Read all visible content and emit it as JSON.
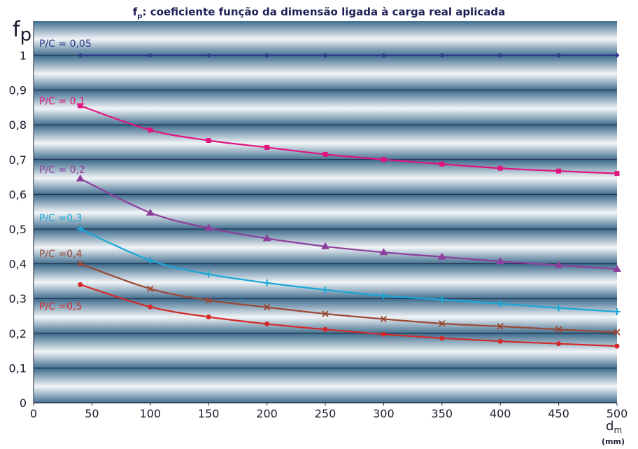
{
  "chart_data": {
    "type": "line",
    "title_main": "f",
    "title_sub": "p",
    "title_rest": ": coeficiente função da dimensão ligada à carga real aplicada",
    "ylabel_main": "f",
    "ylabel_sub": "p",
    "xlabel_main": "d",
    "xlabel_sub": "m",
    "xlabel_unit": "(mm)",
    "xlim": [
      0,
      500
    ],
    "ylim": [
      0,
      1.1
    ],
    "x_ticks": [
      "0",
      "50",
      "100",
      "150",
      "200",
      "250",
      "300",
      "350",
      "400",
      "450",
      "500"
    ],
    "y_ticks": [
      "0",
      "0,1",
      "0,2",
      "0,3",
      "0,4",
      "0,5",
      "0,6",
      "0,7",
      "0,8",
      "0,9",
      "1"
    ],
    "grid": true,
    "series": [
      {
        "name": "P/C = 0,05",
        "color": "#2a3a8f",
        "marker": "diamond",
        "x": [
          40,
          100,
          150,
          200,
          250,
          300,
          350,
          400,
          450,
          500
        ],
        "y": [
          1,
          1,
          1,
          1,
          1,
          1,
          1,
          1,
          1,
          1
        ]
      },
      {
        "name": "P/C = 0,1",
        "color": "#e0137f",
        "marker": "square",
        "x": [
          40,
          100,
          150,
          200,
          250,
          300,
          350,
          400,
          450,
          500
        ],
        "y": [
          0.855,
          0.785,
          0.755,
          0.735,
          0.715,
          0.7,
          0.687,
          0.675,
          0.667,
          0.66
        ]
      },
      {
        "name": "P/C = 0,2",
        "color": "#8e3f9e",
        "marker": "triangle",
        "x": [
          40,
          100,
          150,
          200,
          250,
          300,
          350,
          400,
          450,
          500
        ],
        "y": [
          0.645,
          0.547,
          0.503,
          0.473,
          0.45,
          0.433,
          0.42,
          0.407,
          0.396,
          0.385
        ]
      },
      {
        "name": "P/C =0,3",
        "color": "#1aa7d8",
        "marker": "plus",
        "x": [
          40,
          100,
          150,
          200,
          250,
          300,
          350,
          400,
          450,
          500
        ],
        "y": [
          0.5,
          0.41,
          0.37,
          0.345,
          0.325,
          0.308,
          0.297,
          0.285,
          0.273,
          0.262
        ]
      },
      {
        "name": "P/C =0,4",
        "color": "#9b4a37",
        "marker": "cross",
        "x": [
          40,
          100,
          150,
          200,
          250,
          300,
          350,
          400,
          450,
          500
        ],
        "y": [
          0.4,
          0.328,
          0.295,
          0.275,
          0.256,
          0.241,
          0.228,
          0.22,
          0.211,
          0.203
        ]
      },
      {
        "name": "P/C =0,5",
        "color": "#d42a2a",
        "marker": "circle",
        "x": [
          40,
          100,
          150,
          200,
          250,
          300,
          350,
          400,
          450,
          500
        ],
        "y": [
          0.34,
          0.276,
          0.247,
          0.227,
          0.211,
          0.197,
          0.186,
          0.177,
          0.17,
          0.163
        ]
      }
    ]
  }
}
